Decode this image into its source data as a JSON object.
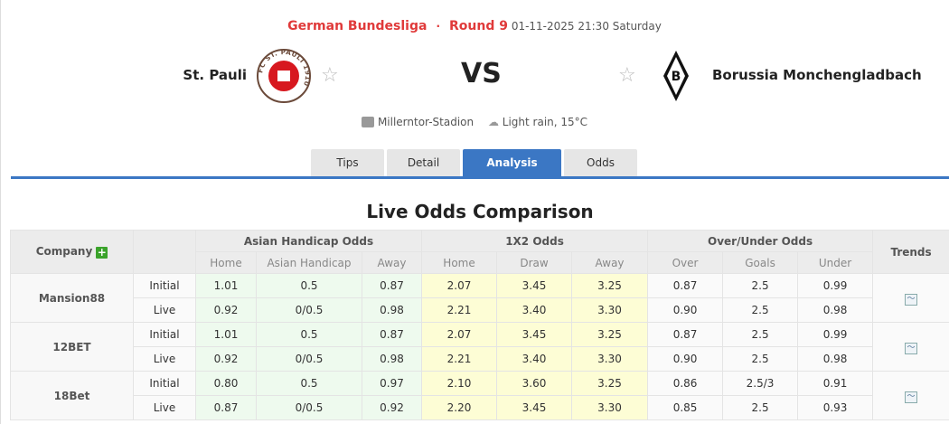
{
  "match": {
    "league": "German Bundesliga",
    "round": "Round 9",
    "datetime": "01-11-2025 21:30 Saturday",
    "home": "St. Pauli",
    "away": "Borussia Monchengladbach",
    "vs": "VS",
    "home_logo_text": "FC ST. PAULI 1910",
    "away_logo_text": "B",
    "venue": "Millerntor-Stadion",
    "weather": "Light rain, 15°C"
  },
  "tabs": [
    {
      "label": "Tips"
    },
    {
      "label": "Detail"
    },
    {
      "label": "Analysis",
      "active": true
    },
    {
      "label": "Odds"
    }
  ],
  "section_title": "Live Odds Comparison",
  "table": {
    "company_header": "Company",
    "trends_header": "Trends",
    "groups": [
      "Asian Handicap Odds",
      "1X2 Odds",
      "Over/Under Odds"
    ],
    "subheaders": [
      "Home",
      "Asian Handicap",
      "Away",
      "Home",
      "Draw",
      "Away",
      "Over",
      "Goals",
      "Under"
    ],
    "companies": [
      {
        "name": "Mansion88",
        "rows": [
          {
            "type": "Initial",
            "v": [
              "1.01",
              "0.5",
              "0.87",
              "2.07",
              "3.45",
              "3.25",
              "0.87",
              "2.5",
              "0.99"
            ]
          },
          {
            "type": "Live",
            "v": [
              "0.92",
              "0/0.5",
              "0.98",
              "2.21",
              "3.40",
              "3.30",
              "0.90",
              "2.5",
              "0.98"
            ]
          }
        ]
      },
      {
        "name": "12BET",
        "rows": [
          {
            "type": "Initial",
            "v": [
              "1.01",
              "0.5",
              "0.87",
              "2.07",
              "3.45",
              "3.25",
              "0.87",
              "2.5",
              "0.99"
            ]
          },
          {
            "type": "Live",
            "v": [
              "0.92",
              "0/0.5",
              "0.98",
              "2.21",
              "3.40",
              "3.30",
              "0.90",
              "2.5",
              "0.98"
            ]
          }
        ]
      },
      {
        "name": "18Bet",
        "rows": [
          {
            "type": "Initial",
            "v": [
              "0.80",
              "0.5",
              "0.97",
              "2.10",
              "3.60",
              "3.25",
              "0.86",
              "2.5/3",
              "0.91"
            ]
          },
          {
            "type": "Live",
            "v": [
              "0.87",
              "0/0.5",
              "0.92",
              "2.20",
              "3.45",
              "3.30",
              "0.85",
              "2.5",
              "0.93"
            ]
          }
        ]
      }
    ]
  },
  "colors": {
    "accent": "#3b77c4",
    "league": "#e03a3a",
    "ah_bg": "#eefaee",
    "x2_bg": "#fdfdd5"
  }
}
